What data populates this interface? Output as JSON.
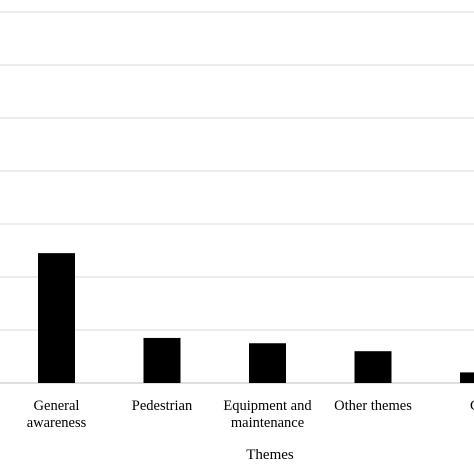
{
  "chart_data": {
    "type": "bar",
    "categories": [
      [
        "General",
        "awareness"
      ],
      [
        "Pedestrian"
      ],
      [
        "Equipment and",
        "maintenance"
      ],
      [
        "Other themes"
      ],
      [
        "Cy"
      ]
    ],
    "values": [
      24.5,
      8.5,
      7.5,
      6.0,
      2.0
    ],
    "xlabel": "Themes",
    "ylabel": "",
    "ylim": [
      0,
      70
    ],
    "grid": true,
    "colors": {
      "bar": "#000000",
      "grid": "#d9d9d9",
      "axis": "#bfbfbf"
    }
  }
}
